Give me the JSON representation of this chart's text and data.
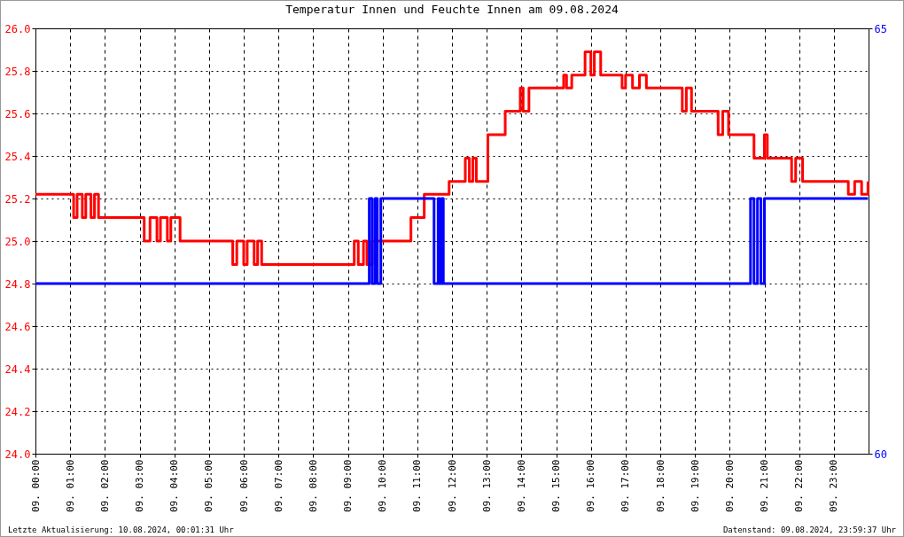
{
  "chart_data": {
    "type": "step",
    "title": "Temperatur Innen und Feuchte Innen am 09.08.2024",
    "xlim": [
      "2024-08-09T00:00",
      "2024-08-10T00:00"
    ],
    "xticks": [
      {
        "value": "2024-08-09T00:00",
        "label": "09. 00:00"
      },
      {
        "value": "2024-08-09T01:00",
        "label": "09. 01:00"
      },
      {
        "value": "2024-08-09T02:00",
        "label": "09. 02:00"
      },
      {
        "value": "2024-08-09T03:00",
        "label": "09. 03:00"
      },
      {
        "value": "2024-08-09T04:00",
        "label": "09. 04:00"
      },
      {
        "value": "2024-08-09T05:00",
        "label": "09. 05:00"
      },
      {
        "value": "2024-08-09T06:00",
        "label": "09. 06:00"
      },
      {
        "value": "2024-08-09T07:00",
        "label": "09. 07:00"
      },
      {
        "value": "2024-08-09T08:00",
        "label": "09. 08:00"
      },
      {
        "value": "2024-08-09T09:00",
        "label": "09. 09:00"
      },
      {
        "value": "2024-08-09T10:00",
        "label": "09. 10:00"
      },
      {
        "value": "2024-08-09T11:00",
        "label": "09. 11:00"
      },
      {
        "value": "2024-08-09T12:00",
        "label": "09. 12:00"
      },
      {
        "value": "2024-08-09T13:00",
        "label": "09. 13:00"
      },
      {
        "value": "2024-08-09T14:00",
        "label": "09. 14:00"
      },
      {
        "value": "2024-08-09T15:00",
        "label": "09. 15:00"
      },
      {
        "value": "2024-08-09T16:00",
        "label": "09. 16:00"
      },
      {
        "value": "2024-08-09T17:00",
        "label": "09. 17:00"
      },
      {
        "value": "2024-08-09T18:00",
        "label": "09. 18:00"
      },
      {
        "value": "2024-08-09T19:00",
        "label": "09. 19:00"
      },
      {
        "value": "2024-08-09T20:00",
        "label": "09. 20:00"
      },
      {
        "value": "2024-08-09T21:00",
        "label": "09. 21:00"
      },
      {
        "value": "2024-08-09T22:00",
        "label": "09. 22:00"
      },
      {
        "value": "2024-08-09T23:00",
        "label": "09. 23:00"
      }
    ],
    "ylim": [
      24.0,
      26.0
    ],
    "yticks": [
      {
        "value": 24,
        "label": "24.0"
      },
      {
        "value": 24.2,
        "label": "24.2"
      },
      {
        "value": 24.4,
        "label": "24.4"
      },
      {
        "value": 24.6,
        "label": "24.6"
      },
      {
        "value": 24.8,
        "label": "24.8"
      },
      {
        "value": 25,
        "label": "25.0"
      },
      {
        "value": 25.2,
        "label": "25.2"
      },
      {
        "value": 25.4,
        "label": "25.4"
      },
      {
        "value": 25.6,
        "label": "25.6"
      },
      {
        "value": 25.8,
        "label": "25.8"
      },
      {
        "value": 26,
        "label": "26.0"
      }
    ],
    "y2lim": [
      60,
      65
    ],
    "y2ticks": [
      60,
      65
    ],
    "grid": true,
    "line_style": "solid",
    "marker": "none",
    "series": [
      {
        "color": "#ff0000",
        "x": [
          "2024-08-09T00:00",
          "2024-08-09T01:06",
          "2024-08-09T01:12",
          "2024-08-09T01:21",
          "2024-08-09T01:27",
          "2024-08-09T01:36",
          "2024-08-09T01:42",
          "2024-08-09T01:49",
          "2024-08-09T03:08",
          "2024-08-09T03:18",
          "2024-08-09T03:30",
          "2024-08-09T03:36",
          "2024-08-09T03:48",
          "2024-08-09T03:54",
          "2024-08-09T04:10",
          "2024-08-09T05:41",
          "2024-08-09T05:48",
          "2024-08-09T06:00",
          "2024-08-09T06:06",
          "2024-08-09T06:18",
          "2024-08-09T06:24",
          "2024-08-09T06:31",
          "2024-08-09T09:11",
          "2024-08-09T09:18",
          "2024-08-09T09:27",
          "2024-08-09T09:33",
          "2024-08-09T09:42",
          "2024-08-09T10:49",
          "2024-08-09T11:12",
          "2024-08-09T11:17",
          "2024-08-09T11:55",
          "2024-08-09T12:23",
          "2024-08-09T12:30",
          "2024-08-09T12:36",
          "2024-08-09T12:42",
          "2024-08-09T13:02",
          "2024-08-09T13:32",
          "2024-08-09T13:58",
          "2024-08-09T14:03",
          "2024-08-09T14:13",
          "2024-08-09T15:13",
          "2024-08-09T15:18",
          "2024-08-09T15:27",
          "2024-08-09T15:50",
          "2024-08-09T16:00",
          "2024-08-09T16:06",
          "2024-08-09T16:17",
          "2024-08-09T16:54",
          "2024-08-09T17:00",
          "2024-08-09T17:12",
          "2024-08-09T17:24",
          "2024-08-09T17:36",
          "2024-08-09T17:44",
          "2024-08-09T18:38",
          "2024-08-09T18:45",
          "2024-08-09T18:54",
          "2024-08-09T19:40",
          "2024-08-09T19:48",
          "2024-08-09T19:58",
          "2024-08-09T20:42",
          "2024-08-09T21:00",
          "2024-08-09T21:05",
          "2024-08-09T21:47",
          "2024-08-09T21:54",
          "2024-08-09T22:06",
          "2024-08-09T23:25",
          "2024-08-09T23:36",
          "2024-08-09T23:48",
          "2024-08-09T23:59"
        ],
        "values": [
          25.22,
          25.11,
          25.22,
          25.11,
          25.22,
          25.11,
          25.22,
          25.11,
          25.0,
          25.11,
          25.0,
          25.11,
          25.0,
          25.11,
          25.0,
          24.89,
          25.0,
          24.89,
          25.0,
          24.89,
          25.0,
          24.89,
          25.0,
          24.89,
          25.0,
          24.89,
          25.0,
          25.11,
          25.22,
          25.22,
          25.28,
          25.39,
          25.28,
          25.39,
          25.28,
          25.5,
          25.61,
          25.72,
          25.61,
          25.72,
          25.78,
          25.72,
          25.78,
          25.89,
          25.78,
          25.89,
          25.78,
          25.72,
          25.78,
          25.72,
          25.78,
          25.72,
          25.72,
          25.61,
          25.72,
          25.61,
          25.5,
          25.61,
          25.5,
          25.39,
          25.5,
          25.39,
          25.28,
          25.39,
          25.28,
          25.22,
          25.28,
          25.22,
          25.28
        ]
      },
      {
        "color": "#0000ff",
        "axis": "y2",
        "x": [
          "2024-08-09T00:00",
          "2024-08-09T09:37",
          "2024-08-09T09:42",
          "2024-08-09T09:47",
          "2024-08-09T09:51",
          "2024-08-09T09:57",
          "2024-08-09T10:00",
          "2024-08-09T11:29",
          "2024-08-09T11:36",
          "2024-08-09T11:39",
          "2024-08-09T11:42",
          "2024-08-09T11:45",
          "2024-08-09T20:36",
          "2024-08-09T20:42",
          "2024-08-09T20:48",
          "2024-08-09T20:54",
          "2024-08-09T21:00",
          "2024-08-09T21:04",
          "2024-08-09T23:59"
        ],
        "values": [
          62,
          63,
          62,
          63,
          62,
          63,
          63,
          62,
          63,
          62,
          63,
          62,
          63,
          62,
          63,
          62,
          63,
          63,
          63
        ]
      }
    ],
    "annotations": [
      "Letzte Aktualisierung: 10.08.2024, 00:01:31 Uhr",
      "Datenstand: 09.08.2024, 23:59:37 Uhr"
    ]
  }
}
